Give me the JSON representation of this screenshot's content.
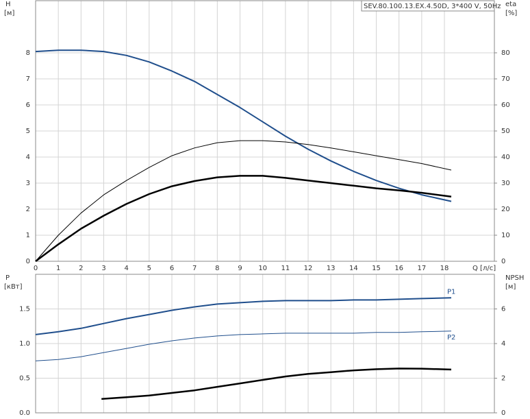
{
  "chart_data": [
    {
      "type": "line",
      "title": "SEV.80.100.13.EX.4.50D, 3*400 V, 50Hz",
      "ylabel": "H",
      "yunit": "[м]",
      "y2label": "eta",
      "y2unit": "[%]",
      "xlabel": "Q [л/с]",
      "xlim": [
        0,
        20.2
      ],
      "xticks": [
        0,
        1,
        2,
        3,
        4,
        5,
        6,
        7,
        8,
        9,
        10,
        11,
        12,
        13,
        14,
        15,
        16,
        17,
        18
      ],
      "ylim": [
        0,
        10
      ],
      "yticks": [
        0,
        1,
        2,
        3,
        4,
        5,
        6,
        7,
        8
      ],
      "y2lim": [
        0,
        100
      ],
      "y2ticks": [
        0,
        10,
        20,
        30,
        40,
        50,
        60,
        70,
        80
      ],
      "grid": true,
      "series": [
        {
          "color": "#1f4e8c",
          "width": 2,
          "x": [
            0,
            1,
            2,
            3,
            4,
            5,
            6,
            7,
            8,
            9,
            10,
            11,
            12,
            13,
            14,
            15,
            16,
            17,
            18.3
          ],
          "values": [
            8.05,
            8.1,
            8.1,
            8.05,
            7.9,
            7.65,
            7.3,
            6.9,
            6.4,
            5.9,
            5.35,
            4.8,
            4.3,
            3.85,
            3.45,
            3.1,
            2.8,
            2.55,
            2.3
          ]
        },
        {
          "color": "#000000",
          "width": 1,
          "axis": "y2",
          "x": [
            0,
            1,
            2,
            3,
            4,
            5,
            6,
            7,
            8,
            9,
            10,
            11,
            12,
            13,
            14,
            15,
            16,
            17,
            18.3
          ],
          "values": [
            0,
            10,
            18.5,
            25.5,
            31,
            36,
            40.5,
            43.5,
            45.5,
            46.3,
            46.3,
            45.8,
            44.8,
            43.5,
            42,
            40.5,
            39,
            37.5,
            35
          ]
        },
        {
          "color": "#000000",
          "width": 2.5,
          "axis": "y2",
          "x": [
            0,
            1,
            2,
            3,
            4,
            5,
            6,
            7,
            8,
            9,
            10,
            11,
            12,
            13,
            14,
            15,
            16,
            17,
            18.3
          ],
          "values": [
            0,
            6.5,
            12.5,
            17.5,
            22,
            25.8,
            28.8,
            30.8,
            32.2,
            32.8,
            32.8,
            32,
            31,
            30,
            29,
            28,
            27.2,
            26.3,
            24.8
          ]
        }
      ]
    },
    {
      "type": "line",
      "ylabel": "P",
      "yunit": "[кВт]",
      "y2label": "NPSH",
      "y2unit": "[м]",
      "xlim": [
        0,
        20.2
      ],
      "ylim": [
        0,
        2
      ],
      "yticks": [
        {
          "value": 0,
          "label": "0.0"
        },
        0.5,
        {
          "value": 1,
          "label": "1.0"
        },
        1.5
      ],
      "y2lim": [
        0,
        8
      ],
      "y2ticks": [
        0,
        2,
        4,
        6
      ],
      "grid": true,
      "series": [
        {
          "name": "P1",
          "color": "#1f4e8c",
          "width": 2,
          "x": [
            0,
            1,
            2,
            3,
            4,
            5,
            6,
            7,
            8,
            9,
            10,
            11,
            12,
            13,
            14,
            15,
            16,
            17,
            18.3
          ],
          "values": [
            1.13,
            1.17,
            1.22,
            1.29,
            1.36,
            1.42,
            1.48,
            1.53,
            1.57,
            1.59,
            1.61,
            1.62,
            1.62,
            1.62,
            1.63,
            1.63,
            1.64,
            1.65,
            1.66
          ]
        },
        {
          "name": "P2",
          "color": "#1f4e8c",
          "width": 1,
          "x": [
            0,
            1,
            2,
            3,
            4,
            5,
            6,
            7,
            8,
            9,
            10,
            11,
            12,
            13,
            14,
            15,
            16,
            17,
            18.3
          ],
          "values": [
            0.75,
            0.77,
            0.81,
            0.87,
            0.93,
            0.99,
            1.04,
            1.08,
            1.11,
            1.13,
            1.14,
            1.15,
            1.15,
            1.15,
            1.15,
            1.16,
            1.16,
            1.17,
            1.18
          ]
        },
        {
          "color": "#000000",
          "width": 2.5,
          "axis": "y2",
          "x": [
            2.9,
            4,
            5,
            6,
            7,
            8,
            9,
            10,
            11,
            12,
            13,
            14,
            15,
            16,
            17,
            18.3
          ],
          "values": [
            0.8,
            0.9,
            1.0,
            1.15,
            1.3,
            1.5,
            1.7,
            1.9,
            2.1,
            2.25,
            2.35,
            2.45,
            2.52,
            2.56,
            2.55,
            2.5
          ]
        }
      ]
    }
  ]
}
